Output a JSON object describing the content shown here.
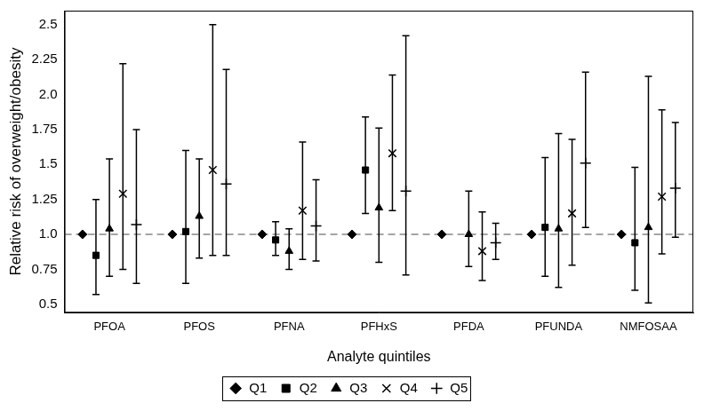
{
  "chart_data": {
    "type": "scatter",
    "x_label": "Analyte quintiles",
    "y_label": "Relative risk of overweight/obesity",
    "categories": [
      "PFOA",
      "PFOS",
      "PFNA",
      "PFHxS",
      "PFDA",
      "PFUNDA",
      "NMFOSAA"
    ],
    "ylim": [
      0.44,
      2.6
    ],
    "yticks": [
      0.5,
      0.75,
      {
        "value": 1,
        "label": "1.0"
      },
      1.25,
      1.5,
      1.75,
      {
        "value": 2,
        "label": "2.0"
      },
      2.25,
      2.5
    ],
    "grid": false,
    "legend": "bottom",
    "reference_line": 1,
    "series": [
      {
        "name": "Q1",
        "color": "#000000",
        "marker": "diamond",
        "values": [
          1,
          1,
          1,
          1,
          1,
          1,
          1
        ],
        "lower": [
          null,
          null,
          null,
          null,
          null,
          null,
          null
        ],
        "upper": [
          null,
          null,
          null,
          null,
          null,
          null,
          null
        ]
      },
      {
        "name": "Q2",
        "color": "#000000",
        "marker": "square",
        "values": [
          0.85,
          1.02,
          0.96,
          1.46,
          null,
          1.05,
          0.94
        ],
        "lower": [
          0.57,
          0.65,
          0.85,
          1.15,
          null,
          0.7,
          0.6
        ],
        "upper": [
          1.25,
          1.6,
          1.09,
          1.84,
          null,
          1.55,
          1.48
        ]
      },
      {
        "name": "Q3",
        "color": "#000000",
        "marker": "triangle",
        "values": [
          1.04,
          1.13,
          0.88,
          1.19,
          1.0,
          1.04,
          1.05
        ],
        "lower": [
          0.7,
          0.83,
          0.75,
          0.8,
          0.77,
          0.62,
          0.51
        ],
        "upper": [
          1.54,
          1.54,
          1.04,
          1.76,
          1.31,
          1.72,
          2.13
        ]
      },
      {
        "name": "Q4",
        "color": "#000000",
        "marker": "x",
        "values": [
          1.29,
          1.46,
          1.17,
          1.58,
          0.88,
          1.15,
          1.27
        ],
        "lower": [
          0.75,
          0.85,
          0.82,
          1.17,
          0.67,
          0.78,
          0.86
        ],
        "upper": [
          2.22,
          2.5,
          1.66,
          2.14,
          1.16,
          1.68,
          1.89
        ]
      },
      {
        "name": "Q5",
        "color": "#000000",
        "marker": "plus",
        "values": [
          1.07,
          1.36,
          1.06,
          1.31,
          0.94,
          1.51,
          1.33
        ],
        "lower": [
          0.65,
          0.85,
          0.81,
          0.71,
          0.82,
          1.05,
          0.98
        ],
        "upper": [
          1.75,
          2.18,
          1.39,
          2.42,
          1.08,
          2.16,
          1.8
        ]
      }
    ]
  }
}
